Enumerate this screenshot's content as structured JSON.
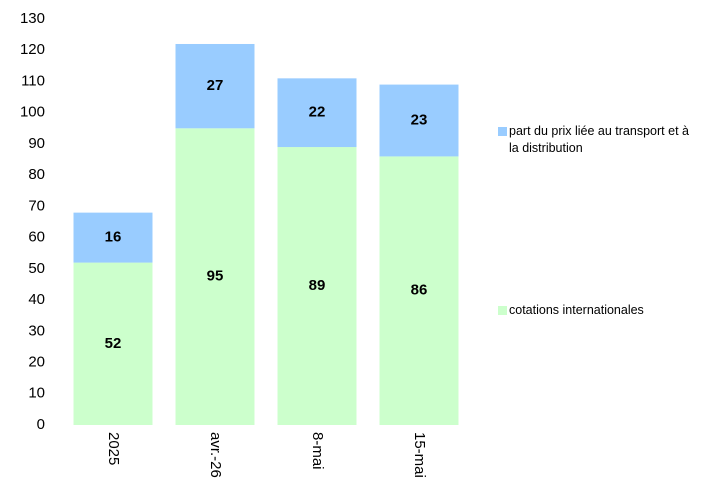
{
  "chart_data": {
    "type": "stacked_bar",
    "categories": [
      "2025",
      "avr.-26",
      "8-mai",
      "15-mai"
    ],
    "series": [
      {
        "name": "cotations internationales",
        "color": "#ccffcc",
        "values": [
          52,
          95,
          89,
          86
        ]
      },
      {
        "name": "part du prix liée au transport et à la distribution",
        "color": "#99ccff",
        "values": [
          16,
          27,
          22,
          23
        ]
      }
    ],
    "ylim": [
      0,
      130
    ],
    "yticks": [
      0,
      10,
      20,
      30,
      40,
      50,
      60,
      70,
      80,
      90,
      100,
      110,
      120,
      130
    ],
    "grid": false,
    "legend": "right"
  }
}
